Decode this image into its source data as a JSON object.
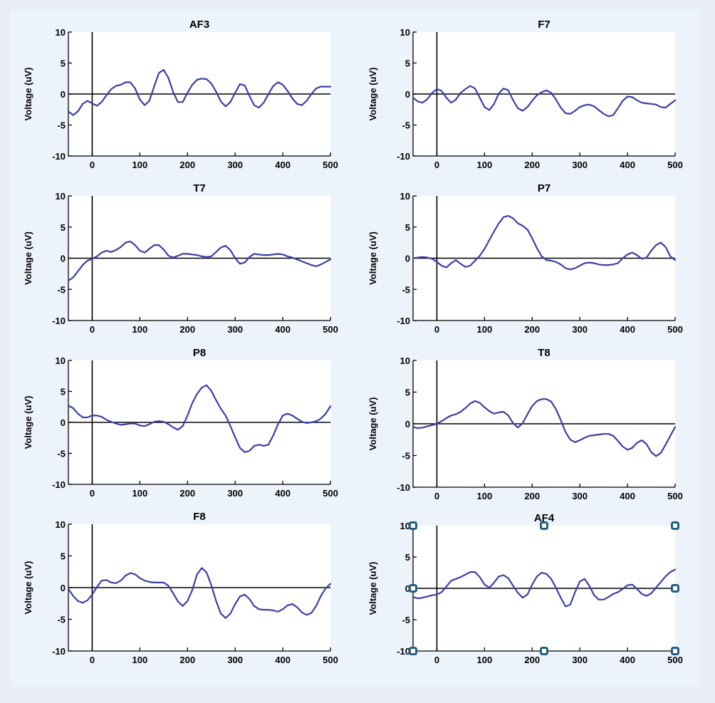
{
  "chart_data": [
    {
      "type": "line",
      "title": "AF3",
      "ylabel": "Voltage (uV)",
      "xlim": [
        -50,
        500
      ],
      "ylim": [
        -10,
        10
      ],
      "xticks": [
        0,
        100,
        200,
        300,
        400,
        500
      ],
      "yticks": [
        10,
        5,
        0,
        -5,
        -10
      ],
      "series": [
        {
          "x": [
            -50,
            -40,
            -30,
            -20,
            -10,
            0,
            10,
            20,
            30,
            40,
            50,
            60,
            70,
            80,
            90,
            100,
            110,
            120,
            130,
            140,
            150,
            160,
            170,
            180,
            190,
            200,
            210,
            220,
            230,
            240,
            250,
            260,
            270,
            280,
            290,
            300,
            310,
            320,
            330,
            340,
            350,
            360,
            370,
            380,
            390,
            400,
            410,
            420,
            430,
            440,
            450,
            460,
            470,
            480,
            490,
            500
          ],
          "y": [
            -2.8,
            -3.4,
            -2.8,
            -1.6,
            -1.1,
            -1.5,
            -1.9,
            -1.3,
            -0.2,
            0.8,
            1.3,
            1.5,
            1.9,
            1.9,
            0.9,
            -0.9,
            -1.8,
            -1.1,
            1.2,
            3.4,
            3.9,
            2.6,
            0.3,
            -1.3,
            -1.3,
            0.2,
            1.5,
            2.3,
            2.5,
            2.4,
            1.7,
            0.4,
            -1.2,
            -2.0,
            -1.3,
            0.2,
            1.6,
            1.4,
            -0.3,
            -1.8,
            -2.2,
            -1.4,
            0,
            1.3,
            1.9,
            1.5,
            0.5,
            -0.7,
            -1.6,
            -1.8,
            -1.1,
            0,
            0.9,
            1.2,
            1.2,
            1.2
          ]
        }
      ]
    },
    {
      "type": "line",
      "title": "F7",
      "ylabel": "Voltage (uV)",
      "xlim": [
        -50,
        500
      ],
      "ylim": [
        -10,
        10
      ],
      "xticks": [
        0,
        100,
        200,
        300,
        400,
        500
      ],
      "yticks": [
        10,
        5,
        0,
        -5,
        -10
      ],
      "series": [
        {
          "x": [
            -50,
            -40,
            -30,
            -20,
            -10,
            0,
            10,
            20,
            30,
            40,
            50,
            60,
            70,
            80,
            90,
            100,
            110,
            120,
            130,
            140,
            150,
            160,
            170,
            180,
            190,
            200,
            210,
            220,
            230,
            240,
            250,
            260,
            270,
            280,
            290,
            300,
            310,
            320,
            330,
            340,
            350,
            360,
            370,
            380,
            390,
            400,
            410,
            420,
            430,
            440,
            450,
            460,
            470,
            480,
            490,
            500
          ],
          "y": [
            -0.6,
            -1.2,
            -1.4,
            -0.8,
            0.2,
            0.8,
            0.5,
            -0.6,
            -1.4,
            -0.9,
            0.2,
            0.8,
            1.3,
            0.9,
            -0.6,
            -2.1,
            -2.6,
            -1.6,
            0.1,
            0.9,
            0.6,
            -1.0,
            -2.3,
            -2.7,
            -2.1,
            -1.1,
            -0.2,
            0.3,
            0.6,
            0.2,
            -0.9,
            -2.2,
            -3.1,
            -3.2,
            -2.7,
            -2.1,
            -1.8,
            -1.7,
            -2.0,
            -2.6,
            -3.2,
            -3.6,
            -3.4,
            -2.3,
            -1.1,
            -0.4,
            -0.5,
            -1.0,
            -1.4,
            -1.5,
            -1.6,
            -1.7,
            -2.1,
            -2.2,
            -1.6,
            -1.0
          ]
        }
      ]
    },
    {
      "type": "line",
      "title": "T7",
      "ylabel": "Voltage (uV)",
      "xlim": [
        -50,
        500
      ],
      "ylim": [
        -10,
        10
      ],
      "xticks": [
        0,
        100,
        200,
        300,
        400,
        500
      ],
      "yticks": [
        10,
        5,
        0,
        -5,
        -10
      ],
      "series": [
        {
          "x": [
            -50,
            -40,
            -30,
            -20,
            -10,
            0,
            10,
            20,
            30,
            40,
            50,
            60,
            70,
            80,
            90,
            100,
            110,
            120,
            130,
            140,
            150,
            160,
            170,
            180,
            190,
            200,
            210,
            220,
            230,
            240,
            250,
            260,
            270,
            280,
            290,
            300,
            310,
            320,
            330,
            340,
            350,
            360,
            370,
            380,
            390,
            400,
            410,
            420,
            430,
            440,
            450,
            460,
            470,
            480,
            490,
            500
          ],
          "y": [
            -3.6,
            -3.1,
            -2.1,
            -1.1,
            -0.4,
            -0.1,
            0.3,
            0.9,
            1.2,
            1.0,
            1.3,
            1.8,
            2.5,
            2.7,
            2.1,
            1.2,
            0.9,
            1.5,
            2.1,
            2.1,
            1.4,
            0.4,
            0.1,
            0.4,
            0.7,
            0.7,
            0.6,
            0.5,
            0.3,
            0.2,
            0.3,
            1.0,
            1.7,
            2.0,
            1.3,
            0.0,
            -0.9,
            -0.7,
            0.2,
            0.7,
            0.6,
            0.5,
            0.5,
            0.6,
            0.7,
            0.6,
            0.3,
            0.1,
            -0.2,
            -0.5,
            -0.8,
            -1.1,
            -1.3,
            -1.0,
            -0.6,
            -0.2
          ]
        }
      ]
    },
    {
      "type": "line",
      "title": "P7",
      "ylabel": "Voltage (uV)",
      "xlim": [
        -50,
        500
      ],
      "ylim": [
        -10,
        10
      ],
      "xticks": [
        0,
        100,
        200,
        300,
        400,
        500
      ],
      "yticks": [
        10,
        5,
        0,
        -5,
        -10
      ],
      "series": [
        {
          "x": [
            -50,
            -40,
            -30,
            -20,
            -10,
            0,
            10,
            20,
            30,
            40,
            50,
            60,
            70,
            80,
            90,
            100,
            110,
            120,
            130,
            140,
            150,
            160,
            170,
            180,
            190,
            200,
            210,
            220,
            230,
            240,
            250,
            260,
            270,
            280,
            290,
            300,
            310,
            320,
            330,
            340,
            350,
            360,
            370,
            380,
            390,
            400,
            410,
            420,
            430,
            440,
            450,
            460,
            470,
            480,
            490,
            500
          ],
          "y": [
            0,
            0.1,
            0.2,
            0.1,
            -0.1,
            -0.6,
            -1.2,
            -1.5,
            -0.8,
            -0.3,
            -0.9,
            -1.4,
            -1.2,
            -0.4,
            0.4,
            1.5,
            2.9,
            4.3,
            5.6,
            6.6,
            6.8,
            6.4,
            5.6,
            5.2,
            4.6,
            3.2,
            1.6,
            0.3,
            -0.3,
            -0.4,
            -0.6,
            -1.0,
            -1.6,
            -1.8,
            -1.6,
            -1.2,
            -0.8,
            -0.7,
            -0.8,
            -1.0,
            -1.1,
            -1.1,
            -1.0,
            -0.8,
            0.0,
            0.6,
            0.9,
            0.5,
            -0.1,
            0.1,
            1.2,
            2.1,
            2.5,
            1.8,
            0.3,
            -0.3
          ]
        }
      ]
    },
    {
      "type": "line",
      "title": "P8",
      "ylabel": "Voltage (uV)",
      "xlim": [
        -50,
        500
      ],
      "ylim": [
        -10,
        10
      ],
      "xticks": [
        0,
        100,
        200,
        300,
        400,
        500
      ],
      "yticks": [
        10,
        5,
        0,
        -5,
        -10
      ],
      "series": [
        {
          "x": [
            -50,
            -40,
            -30,
            -20,
            -10,
            0,
            10,
            20,
            30,
            40,
            50,
            60,
            70,
            80,
            90,
            100,
            110,
            120,
            130,
            140,
            150,
            160,
            170,
            180,
            190,
            200,
            210,
            220,
            230,
            240,
            250,
            260,
            270,
            280,
            290,
            300,
            310,
            320,
            330,
            340,
            350,
            360,
            370,
            380,
            390,
            400,
            410,
            420,
            430,
            440,
            450,
            460,
            470,
            480,
            490,
            500
          ],
          "y": [
            2.7,
            2.3,
            1.4,
            0.8,
            0.8,
            1.1,
            1.1,
            0.9,
            0.4,
            0.1,
            -0.2,
            -0.4,
            -0.3,
            -0.2,
            -0.2,
            -0.5,
            -0.6,
            -0.3,
            0.1,
            0.2,
            0.1,
            -0.3,
            -0.8,
            -1.2,
            -0.6,
            1.1,
            3.1,
            4.6,
            5.6,
            6.0,
            5.1,
            3.6,
            2.2,
            1.1,
            -0.6,
            -2.4,
            -4.1,
            -4.8,
            -4.6,
            -3.8,
            -3.6,
            -3.8,
            -3.6,
            -2.1,
            -0.3,
            1.1,
            1.4,
            1.1,
            0.6,
            0.1,
            -0.1,
            0.0,
            0.2,
            0.6,
            1.4,
            2.6
          ]
        }
      ]
    },
    {
      "type": "line",
      "title": "T8",
      "ylabel": "Voltage (uV)",
      "xlim": [
        -50,
        500
      ],
      "ylim": [
        -10,
        10
      ],
      "xticks": [
        0,
        100,
        200,
        300,
        400,
        500
      ],
      "yticks": [
        10,
        5,
        0,
        -5,
        -10
      ],
      "series": [
        {
          "x": [
            -50,
            -40,
            -30,
            -20,
            -10,
            0,
            10,
            20,
            30,
            40,
            50,
            60,
            70,
            80,
            90,
            100,
            110,
            120,
            130,
            140,
            150,
            160,
            170,
            180,
            190,
            200,
            210,
            220,
            230,
            240,
            250,
            260,
            270,
            280,
            290,
            300,
            310,
            320,
            330,
            340,
            350,
            360,
            370,
            380,
            390,
            400,
            410,
            420,
            430,
            440,
            450,
            460,
            470,
            480,
            490,
            500
          ],
          "y": [
            -0.5,
            -0.7,
            -0.6,
            -0.4,
            -0.2,
            0,
            0.4,
            0.9,
            1.3,
            1.5,
            1.9,
            2.5,
            3.2,
            3.6,
            3.3,
            2.6,
            2.0,
            1.6,
            1.8,
            1.9,
            1.3,
            0.1,
            -0.6,
            0.1,
            1.5,
            2.8,
            3.6,
            3.9,
            3.9,
            3.5,
            2.3,
            0.6,
            -1.3,
            -2.5,
            -2.9,
            -2.6,
            -2.2,
            -1.9,
            -1.8,
            -1.7,
            -1.6,
            -1.6,
            -1.9,
            -2.7,
            -3.6,
            -4.1,
            -3.8,
            -3.0,
            -2.6,
            -3.2,
            -4.5,
            -5.1,
            -4.6,
            -3.3,
            -1.9,
            -0.5
          ]
        }
      ]
    },
    {
      "type": "line",
      "title": "F8",
      "ylabel": "Voltage (uV)",
      "xlim": [
        -50,
        500
      ],
      "ylim": [
        -10,
        10
      ],
      "xticks": [
        0,
        100,
        200,
        300,
        400,
        500
      ],
      "yticks": [
        10,
        5,
        0,
        -5,
        -10
      ],
      "series": [
        {
          "x": [
            -50,
            -40,
            -30,
            -20,
            -10,
            0,
            10,
            20,
            30,
            40,
            50,
            60,
            70,
            80,
            90,
            100,
            110,
            120,
            130,
            140,
            150,
            160,
            170,
            180,
            190,
            200,
            210,
            220,
            230,
            240,
            250,
            260,
            270,
            280,
            290,
            300,
            310,
            320,
            330,
            340,
            350,
            360,
            370,
            380,
            390,
            400,
            410,
            420,
            430,
            440,
            450,
            460,
            470,
            480,
            490,
            500
          ],
          "y": [
            -0.2,
            -1.3,
            -2.1,
            -2.4,
            -2.0,
            -1.1,
            0.1,
            1.1,
            1.2,
            0.8,
            0.7,
            1.1,
            1.9,
            2.3,
            2.1,
            1.5,
            1.1,
            0.9,
            0.8,
            0.8,
            0.8,
            0.3,
            -0.9,
            -2.2,
            -2.9,
            -2.1,
            -0.4,
            2.1,
            3.1,
            2.4,
            0.4,
            -2.1,
            -4.1,
            -4.8,
            -4.1,
            -2.6,
            -1.4,
            -1.1,
            -1.8,
            -2.9,
            -3.4,
            -3.5,
            -3.5,
            -3.6,
            -3.8,
            -3.4,
            -2.8,
            -2.6,
            -3.1,
            -3.9,
            -4.3,
            -4.0,
            -2.9,
            -1.3,
            -0.1,
            0.6
          ]
        }
      ]
    },
    {
      "type": "line",
      "title": "AF4",
      "ylabel": "Voltage (uV)",
      "xlim": [
        -50,
        500
      ],
      "ylim": [
        -10,
        10
      ],
      "xticks": [
        0,
        100,
        200,
        300,
        400,
        500
      ],
      "yticks": [
        10,
        5,
        0,
        -5,
        -10
      ],
      "series": [
        {
          "x": [
            -50,
            -40,
            -30,
            -20,
            -10,
            0,
            10,
            20,
            30,
            40,
            50,
            60,
            70,
            80,
            90,
            100,
            110,
            120,
            130,
            140,
            150,
            160,
            170,
            180,
            190,
            200,
            210,
            220,
            230,
            240,
            250,
            260,
            270,
            280,
            290,
            300,
            310,
            320,
            330,
            340,
            350,
            360,
            370,
            380,
            390,
            400,
            410,
            420,
            430,
            440,
            450,
            460,
            470,
            480,
            490,
            500
          ],
          "y": [
            -1.4,
            -1.6,
            -1.5,
            -1.3,
            -1.1,
            -1.0,
            -0.6,
            0.3,
            1.2,
            1.5,
            1.8,
            2.2,
            2.6,
            2.6,
            1.8,
            0.6,
            0.1,
            0.9,
            1.9,
            2.1,
            1.6,
            0.4,
            -0.7,
            -1.5,
            -1.0,
            0.6,
            1.9,
            2.5,
            2.3,
            1.5,
            0.1,
            -1.5,
            -2.9,
            -2.6,
            -0.6,
            1.1,
            1.5,
            0.4,
            -1.1,
            -1.8,
            -1.8,
            -1.4,
            -0.9,
            -0.6,
            -0.1,
            0.5,
            0.6,
            -0.1,
            -0.9,
            -1.2,
            -0.8,
            0.1,
            1.0,
            1.9,
            2.6,
            3.0
          ]
        }
      ],
      "markers": [
        {
          "x": -50,
          "y": 10
        },
        {
          "x": 225,
          "y": 10
        },
        {
          "x": 500,
          "y": 10
        },
        {
          "x": -50,
          "y": 0
        },
        {
          "x": 500,
          "y": 0
        },
        {
          "x": -50,
          "y": -10
        },
        {
          "x": 225,
          "y": -10
        },
        {
          "x": 500,
          "y": -10
        }
      ]
    }
  ],
  "colors": {
    "line": "#3b3fa6",
    "marker": "#1f5f86"
  }
}
